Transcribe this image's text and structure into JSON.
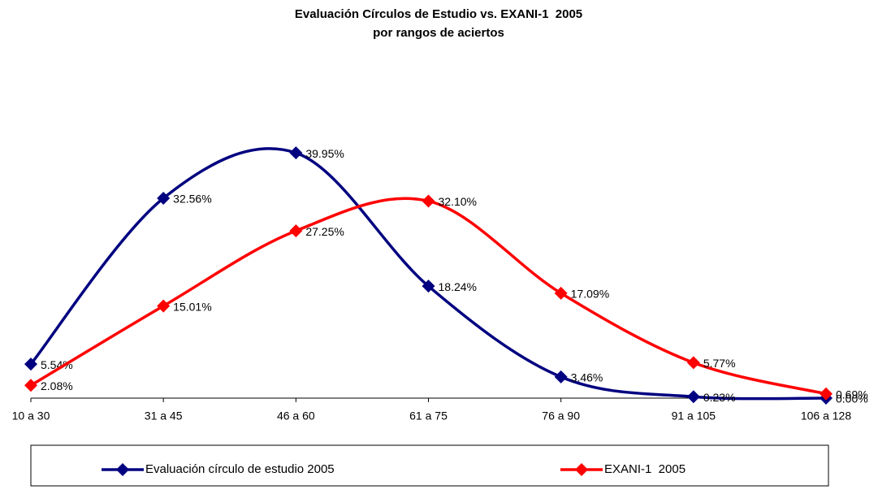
{
  "chart_data": {
    "type": "line",
    "title": "Evaluación Círculos de Estudio vs. EXANI-1  2005",
    "subtitle": "por rangos de aciertos",
    "categories": [
      "10 a 30",
      "31 a 45",
      "46 a 60",
      "61 a 75",
      "76 a 90",
      "91 a 105",
      "106 a 128"
    ],
    "series": [
      {
        "name": "Evaluación círculo de estudio 2005",
        "color": "#000080",
        "values": [
          5.54,
          32.56,
          39.95,
          18.24,
          3.46,
          0.23,
          0
        ],
        "value_labels": [
          "5.54%",
          "32.56%",
          "39.95%",
          "18.24%",
          "3.46%",
          "0.23%",
          "0.00%"
        ]
      },
      {
        "name": "EXANI-1  2005",
        "color": "#ff0000",
        "values": [
          2.08,
          15.01,
          27.25,
          32.1,
          17.09,
          5.77,
          0.69
        ],
        "value_labels": [
          "2.08%",
          "15.01%",
          "27.25%",
          "32.10%",
          "17.09%",
          "5.77%",
          "0.69%"
        ]
      }
    ],
    "ylim": [
      0,
      45
    ],
    "smooth": true,
    "legend": "bottom"
  }
}
